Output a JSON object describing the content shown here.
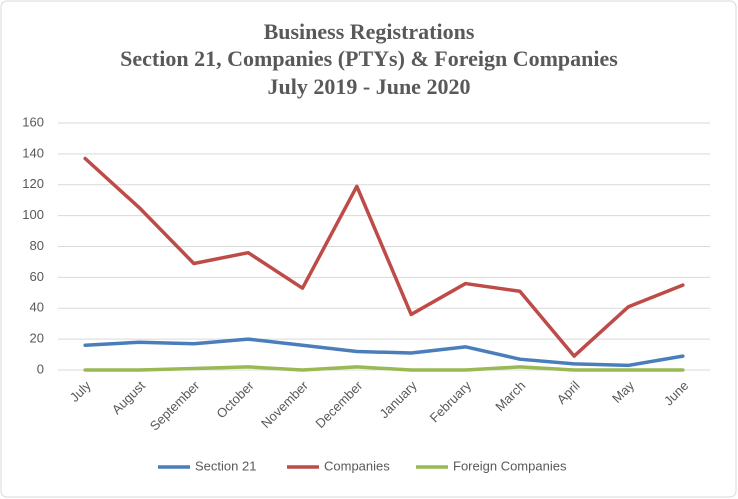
{
  "chart_data": {
    "type": "line",
    "title": [
      "Business Registrations",
      "Section 21, Companies (PTYs) & Foreign Companies",
      "July 2019 - June 2020"
    ],
    "categories": [
      "July",
      "August",
      "September",
      "October",
      "November",
      "December",
      "January",
      "February",
      "March",
      "April",
      "May",
      "June"
    ],
    "series": [
      {
        "name": "Section 21",
        "color": "#4a7ebb",
        "values": [
          16,
          18,
          17,
          20,
          16,
          12,
          11,
          15,
          7,
          4,
          3,
          9
        ]
      },
      {
        "name": "Companies",
        "color": "#be4b48",
        "values": [
          137,
          105,
          69,
          76,
          53,
          119,
          36,
          56,
          51,
          9,
          41,
          55
        ]
      },
      {
        "name": "Foreign Companies",
        "color": "#98b954",
        "values": [
          0,
          0,
          1,
          2,
          0,
          2,
          0,
          0,
          2,
          0,
          0,
          0
        ]
      }
    ],
    "ylim": [
      0,
      160
    ],
    "yticks": [
      0,
      20,
      40,
      60,
      80,
      100,
      120,
      140,
      160
    ],
    "grid": true,
    "legend": "bottom"
  }
}
